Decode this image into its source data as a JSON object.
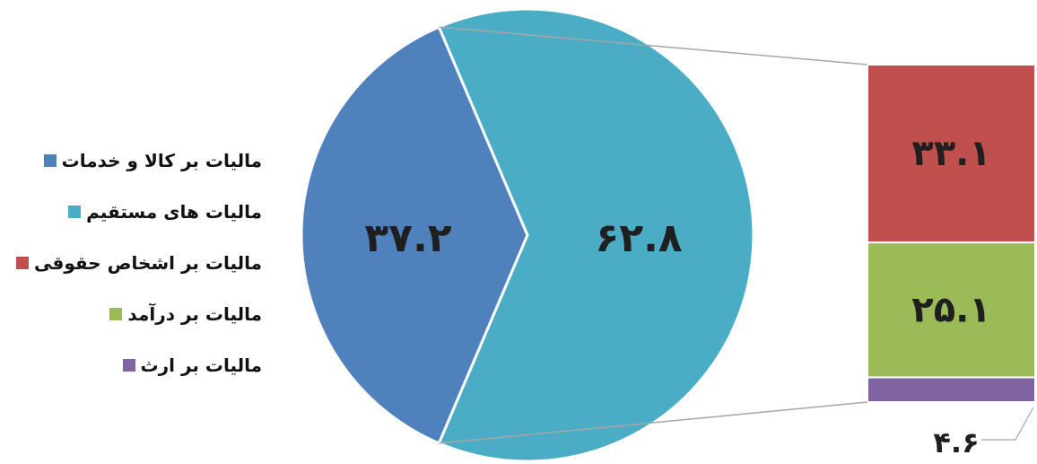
{
  "chart_data": {
    "type": "pie",
    "main_pie": {
      "slices": [
        {
          "label": "مالیات بر کالا و خدمات",
          "value": 37.2,
          "value_label": "۳۷.۲",
          "color": "#4F81BD"
        },
        {
          "label": "مالیات های مستقیم",
          "value": 62.8,
          "value_label": "۶۲.۸",
          "color": "#4BACC6"
        }
      ]
    },
    "breakdown_bar": {
      "of": "مالیات های مستقیم",
      "segments": [
        {
          "label": "مالیات بر اشخاص حقوقی",
          "value": 33.1,
          "value_label": "۳۳.۱",
          "color": "#C0504D"
        },
        {
          "label": "مالیات بر درآمد",
          "value": 25.1,
          "value_label": "۲۵.۱",
          "color": "#9BBB59"
        },
        {
          "label": "مالیات بر ارث",
          "value": 4.6,
          "value_label": "۴.۶",
          "color": "#8064A2"
        }
      ]
    },
    "legend": {
      "placement": "left",
      "items": [
        {
          "label": "مالیات بر کالا و خدمات",
          "color": "#4F81BD"
        },
        {
          "label": "مالیات های مستقیم",
          "color": "#4BACC6"
        },
        {
          "label": "مالیات بر اشخاص حقوقی",
          "color": "#C0504D"
        },
        {
          "label": "مالیات بر درآمد",
          "color": "#9BBB59"
        },
        {
          "label": "مالیات بر ارث",
          "color": "#8064A2"
        }
      ]
    }
  }
}
